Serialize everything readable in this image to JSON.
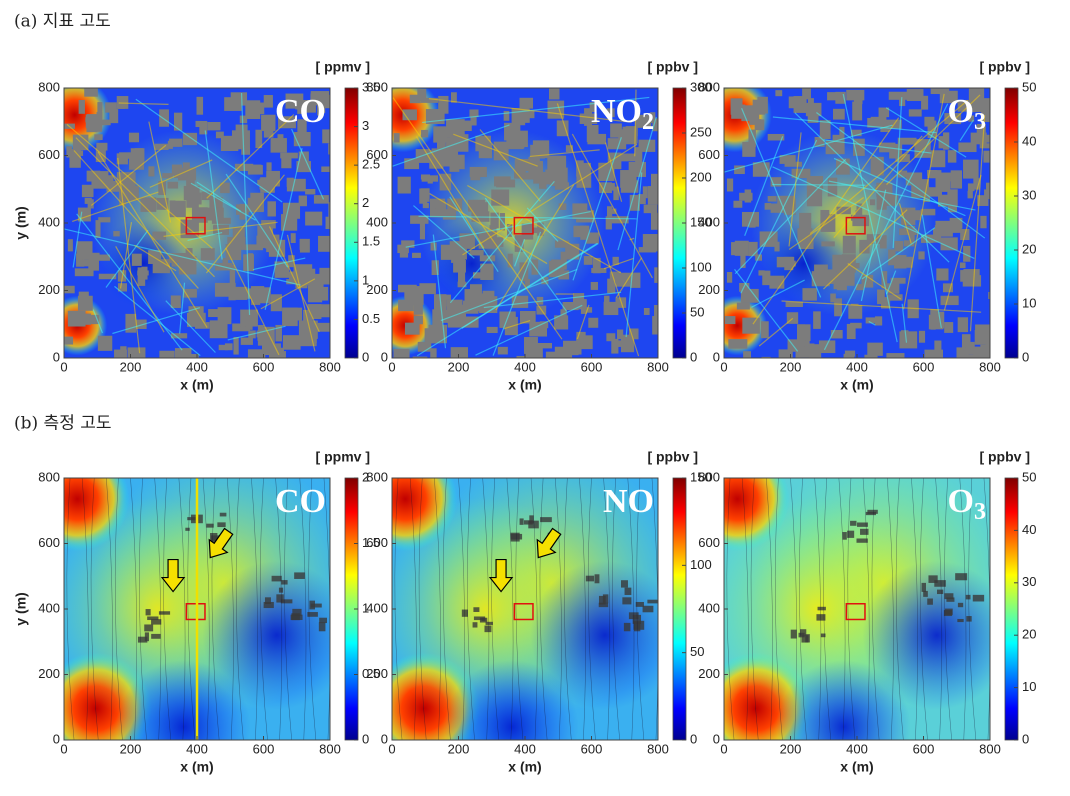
{
  "panel_titles": [
    "(a) 지표 고도",
    "(b) 측정 고도"
  ],
  "chart_data": [
    {
      "type": "heatmap",
      "species": "CO",
      "unit": "[ ppmv ]",
      "xlabel": "x (m)",
      "ylabel": "y (m)",
      "xlim": [
        0,
        800
      ],
      "xticks": [
        0,
        200,
        400,
        600,
        800
      ],
      "ylim": [
        0,
        800
      ],
      "yticks": [
        0,
        200,
        400,
        600,
        800
      ],
      "clim": [
        0,
        3.5
      ],
      "cticks": [
        0,
        0.5,
        1,
        1.5,
        2,
        2.5,
        3,
        3.5
      ]
    },
    {
      "type": "heatmap",
      "species": "NO",
      "species_sub": "2",
      "unit": "[ ppbv ]",
      "xlabel": "x (m)",
      "xlim": [
        0,
        800
      ],
      "xticks": [
        0,
        200,
        400,
        600,
        800
      ],
      "ylim": [
        0,
        800
      ],
      "yticks": [
        0,
        200,
        400,
        600,
        800
      ],
      "clim": [
        0,
        300
      ],
      "cticks": [
        0,
        50,
        100,
        150,
        200,
        250,
        300
      ]
    },
    {
      "type": "heatmap",
      "species": "O",
      "species_sub": "3",
      "unit": "[ ppbv ]",
      "xlabel": "x (m)",
      "xlim": [
        0,
        800
      ],
      "xticks": [
        0,
        200,
        400,
        600,
        800
      ],
      "ylim": [
        0,
        800
      ],
      "yticks": [
        0,
        200,
        400,
        600,
        800
      ],
      "clim": [
        0,
        50
      ],
      "cticks": [
        0,
        10,
        20,
        30,
        40,
        50
      ]
    },
    {
      "type": "heatmap",
      "species": "CO",
      "unit": "[ ppmv ]",
      "xlabel": "x (m)",
      "ylabel": "y (m)",
      "xlim": [
        0,
        800
      ],
      "xticks": [
        0,
        200,
        400,
        600,
        800
      ],
      "ylim": [
        0,
        800
      ],
      "yticks": [
        0,
        200,
        400,
        600,
        800
      ],
      "clim": [
        0,
        2
      ],
      "cticks": [
        0,
        0.5,
        1,
        1.5,
        2
      ]
    },
    {
      "type": "heatmap",
      "species": "NO",
      "unit": "[ ppbv ]",
      "xlabel": "x (m)",
      "xlim": [
        0,
        800
      ],
      "xticks": [
        0,
        200,
        400,
        600,
        800
      ],
      "ylim": [
        0,
        800
      ],
      "yticks": [
        0,
        200,
        400,
        600,
        800
      ],
      "clim": [
        0,
        150
      ],
      "cticks": [
        0,
        50,
        100,
        150
      ]
    },
    {
      "type": "heatmap",
      "species": "O",
      "species_sub": "3",
      "unit": "[ ppbv ]",
      "xlabel": "x (m)",
      "xlim": [
        0,
        800
      ],
      "xticks": [
        0,
        200,
        400,
        600,
        800
      ],
      "ylim": [
        0,
        800
      ],
      "yticks": [
        0,
        200,
        400,
        600,
        800
      ],
      "clim": [
        0,
        50
      ],
      "cticks": [
        0,
        10,
        20,
        30,
        40,
        50
      ]
    }
  ]
}
